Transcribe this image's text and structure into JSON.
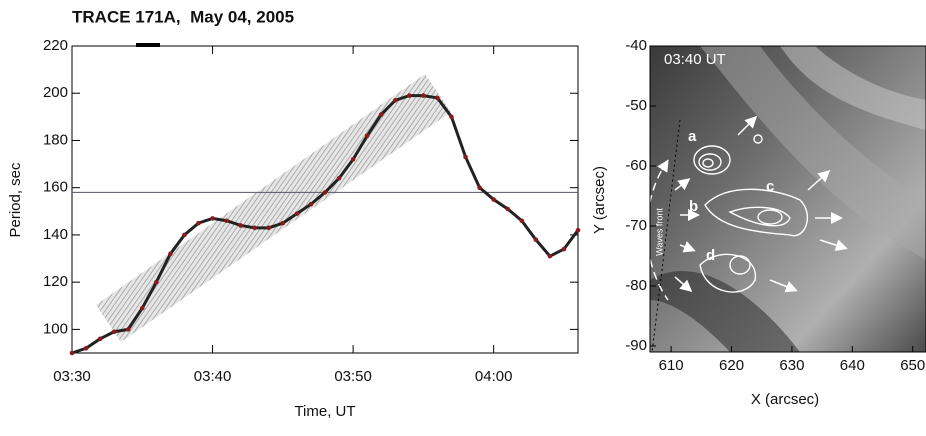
{
  "chart_data": [
    {
      "type": "line",
      "title": "TRACE 171A,  May 04, 2005",
      "xlabel": "Time, UT",
      "ylabel": "Period, sec",
      "x": [
        "03:30",
        "03:31",
        "03:32",
        "03:33",
        "03:34",
        "03:35",
        "03:36",
        "03:37",
        "03:38",
        "03:39",
        "03:40",
        "03:41",
        "03:42",
        "03:43",
        "03:44",
        "03:45",
        "03:46",
        "03:47",
        "03:48",
        "03:49",
        "03:50",
        "03:51",
        "03:52",
        "03:53",
        "03:54",
        "03:55",
        "03:56",
        "03:57",
        "03:58",
        "03:59",
        "04:00",
        "04:01",
        "04:02",
        "04:03",
        "04:04",
        "04:05",
        "04:06"
      ],
      "series": [
        {
          "color": "#8b1a1a",
          "values": [
            90,
            92,
            96,
            99,
            100,
            109,
            120,
            132,
            140,
            145,
            147,
            146,
            144,
            143,
            143,
            145,
            149,
            153,
            158,
            164,
            172,
            182,
            191,
            197,
            199,
            199,
            198,
            190,
            173,
            160,
            155,
            151,
            146,
            138,
            131,
            134,
            142
          ]
        }
      ],
      "hline": 158,
      "xlim": [
        "03:30",
        "04:06"
      ],
      "xticks": [
        "03:30",
        "03:40",
        "03:50",
        "04:00"
      ],
      "ylim": [
        90,
        220
      ],
      "yticks": [
        100,
        120,
        140,
        160,
        180,
        200,
        220
      ]
    },
    {
      "type": "image",
      "xlabel": "X (arcsec)",
      "ylabel": "Y (arcsec)",
      "annotations": [
        "03:40 UT",
        "a",
        "b",
        "c",
        "d",
        "Waves front"
      ],
      "xlim": [
        606.5,
        652.2
      ],
      "xticks": [
        610,
        620,
        630,
        640,
        650
      ],
      "ylim": [
        -91,
        -40
      ],
      "yticks": [
        -40,
        -50,
        -60,
        -70,
        -80,
        -90
      ]
    }
  ]
}
